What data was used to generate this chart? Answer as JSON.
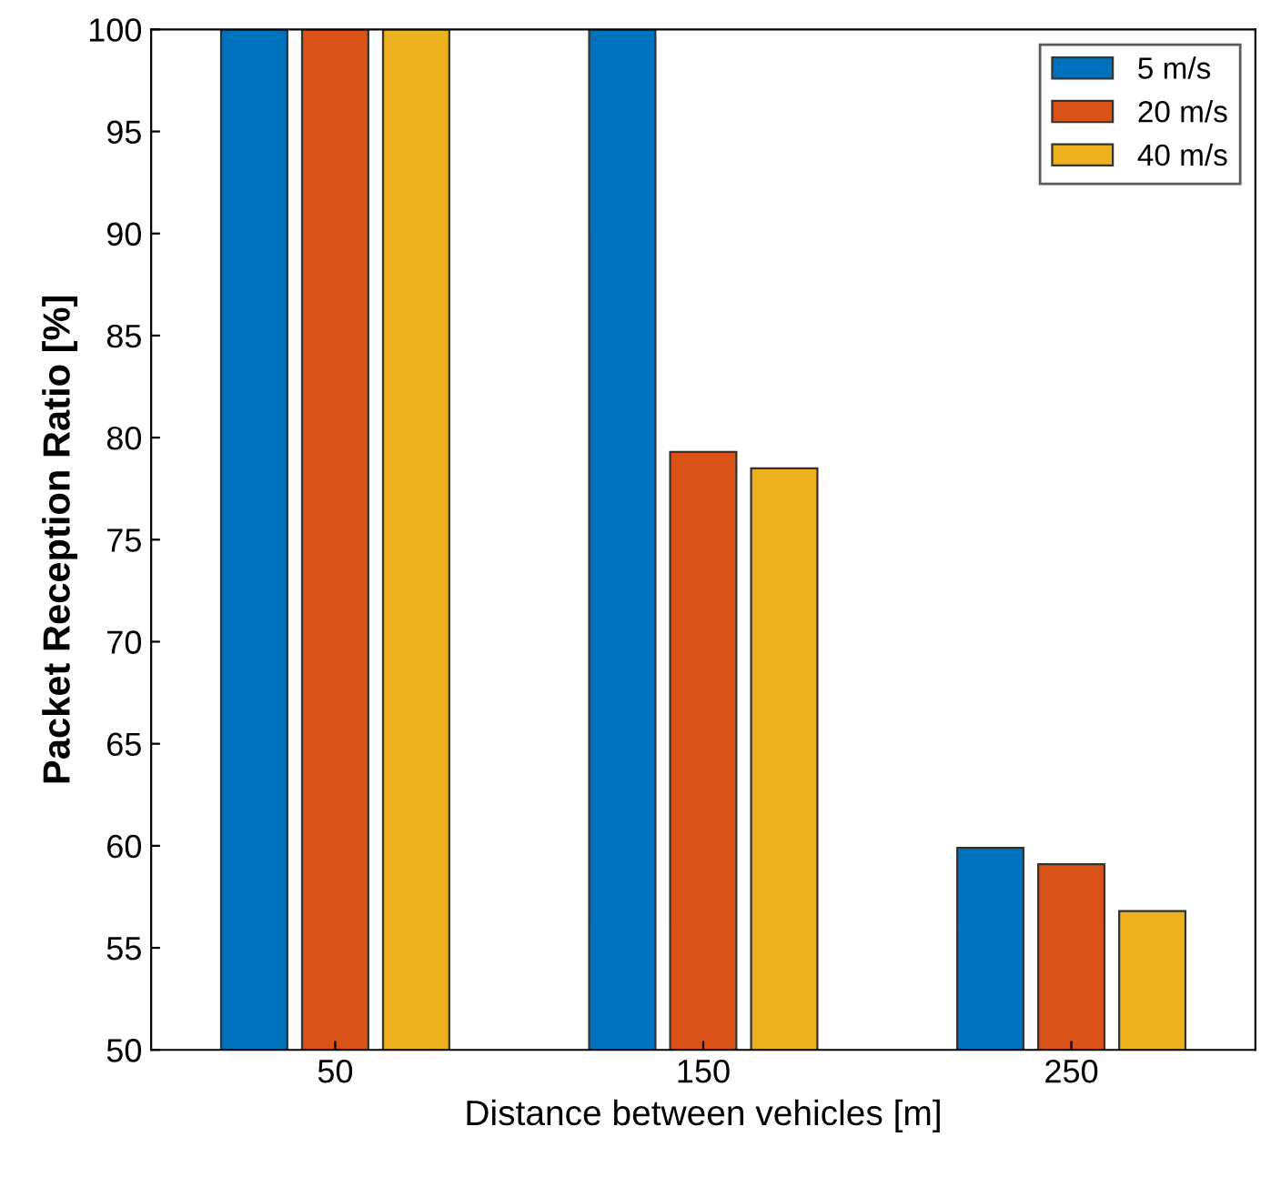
{
  "chart_data": {
    "type": "bar",
    "xlabel": "Distance between vehicles [m]",
    "ylabel": "Packet Reception Ratio [%]",
    "categories": [
      "50",
      "150",
      "250"
    ],
    "series": [
      {
        "name": "5 m/s",
        "color": "#0072bd",
        "values": [
          100,
          100,
          59.9
        ]
      },
      {
        "name": "20 m/s",
        "color": "#d95319",
        "values": [
          100,
          79.3,
          59.1
        ]
      },
      {
        "name": "40 m/s",
        "color": "#edb120",
        "values": [
          100,
          78.5,
          56.8
        ]
      }
    ],
    "ylim": [
      50,
      100
    ],
    "yticks": [
      50,
      55,
      60,
      65,
      70,
      75,
      80,
      85,
      90,
      95,
      100
    ],
    "grid": false,
    "legend": "top right"
  }
}
